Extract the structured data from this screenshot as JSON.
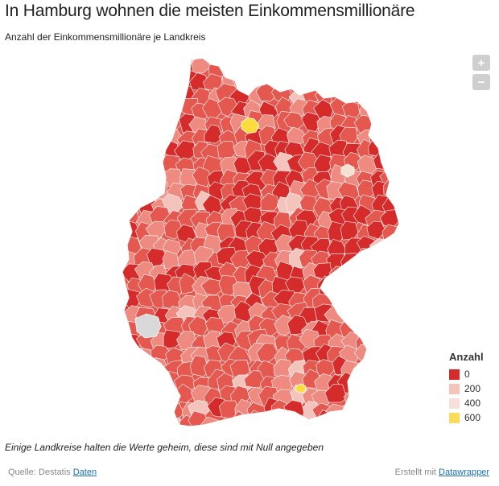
{
  "title": "In Hamburg wohnen die meisten Einkommensmillionäre",
  "subtitle": "Anzahl der Einkommensmillionäre je Landkreis",
  "zoom": {
    "plus": "+",
    "minus": "−"
  },
  "legend": {
    "title": "Anzahl",
    "items": [
      {
        "label": "0",
        "color": "#d62b2b"
      },
      {
        "label": "200",
        "color": "#f4c3bc"
      },
      {
        "label": "400",
        "color": "#f7e0dc"
      },
      {
        "label": "600",
        "color": "#fbdc5a"
      }
    ]
  },
  "colors": {
    "dark_red": "#d62b2b",
    "mid_red": "#e5584f",
    "light_red": "#ef8a80",
    "pale": "#f4c3bc",
    "no_data": "#d9d9d9",
    "highlight": "#fbdc3c",
    "border": "#ffffff"
  },
  "note": "Einige Landkreise halten die Werte geheim, diese sind mit Null angegeben",
  "footer": {
    "source_prefix": "Quelle: Destatis",
    "source_link": "Daten",
    "credit_prefix": "Erstellt mit",
    "credit_link": "Datawrapper"
  }
}
